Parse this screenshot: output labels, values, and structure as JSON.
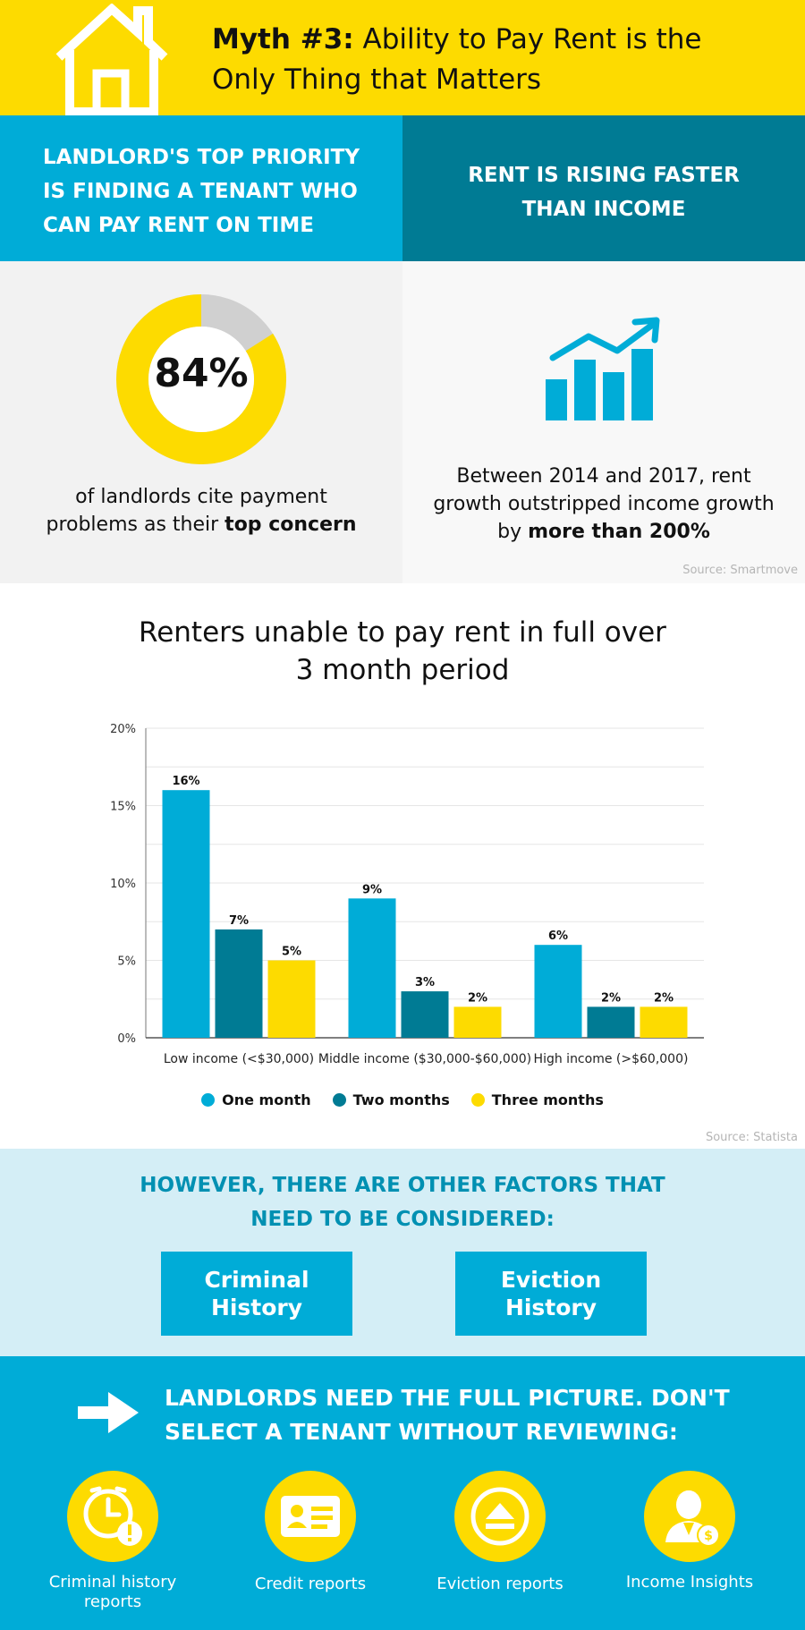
{
  "header": {
    "title_bold": "Myth #3:",
    "title_line1": "Ability to Pay Rent is the",
    "title_line2": "Only Thing that Matters",
    "icon": "house-icon"
  },
  "band": {
    "left_text": "LANDLORD'S TOP PRIORITY IS FINDING A TENANT WHO CAN PAY RENT ON TIME",
    "right_text_line1": "RENT IS RISING FASTER",
    "right_text_line2": "THAN INCOME"
  },
  "stat_left": {
    "value": "84%",
    "percent": 84,
    "caption_line1": "of landlords cite payment",
    "caption_line2_plain": "problems as their ",
    "caption_line2_bold": "top concern"
  },
  "stat_right": {
    "icon": "growth-chart-icon",
    "caption_line1": "Between 2014 and 2017, rent",
    "caption_line2": "growth outstripped income growth",
    "caption_line3_plain": "by ",
    "caption_line3_bold": "more than 200%",
    "source": "Source: Smartmove"
  },
  "chart_data": {
    "type": "bar",
    "title_line1": "Renters unable to pay rent in full over",
    "title_line2": "3 month period",
    "categories": [
      "Low income (<$30,000)",
      "Middle income ($30,000-$60,000)",
      "High income (>$60,000)"
    ],
    "series": [
      {
        "name": "One month",
        "values": [
          16,
          9,
          6
        ],
        "labels": [
          "16%",
          "9%",
          "6%"
        ],
        "color": "#00acd7"
      },
      {
        "name": "Two months",
        "values": [
          7,
          3,
          2
        ],
        "labels": [
          "7%",
          "3%",
          "2%"
        ],
        "color": "#007b94"
      },
      {
        "name": "Three months",
        "values": [
          5,
          2,
          2
        ],
        "labels": [
          "5%",
          "2%",
          "2%"
        ],
        "color": "#fddb00"
      }
    ],
    "yticks": [
      "0%",
      "5%",
      "10%",
      "15%",
      "20%"
    ],
    "ylim": [
      0,
      20
    ],
    "grid": true,
    "legend_position": "bottom",
    "source": "Source: Statista"
  },
  "factors": {
    "title_line1": "HOWEVER, THERE ARE OTHER FACTORS THAT",
    "title_line2": "NEED TO BE CONSIDERED:",
    "items": [
      {
        "line1": "Criminal",
        "line2": "History"
      },
      {
        "line1": "Eviction",
        "line2": "History"
      }
    ]
  },
  "cta": {
    "icon": "arrow-right-icon",
    "title_line1": "LANDLORDS NEED THE FULL PICTURE. DON'T",
    "title_line2": "SELECT A TENANT WITHOUT REVIEWING:",
    "items": [
      {
        "label_line1": "Criminal history",
        "label_line2": "reports",
        "icon": "clock-alert-icon"
      },
      {
        "label_line1": "Credit reports",
        "label_line2": "",
        "icon": "id-card-icon"
      },
      {
        "label_line1": "Eviction reports",
        "label_line2": "",
        "icon": "eject-icon"
      },
      {
        "label_line1": "Income Insights",
        "label_line2": "",
        "icon": "person-dollar-icon"
      }
    ]
  },
  "colors": {
    "yellow": "#fddb00",
    "light_blue": "#00acd7",
    "dark_teal": "#007b94",
    "pale_blue": "#d4eef6"
  }
}
